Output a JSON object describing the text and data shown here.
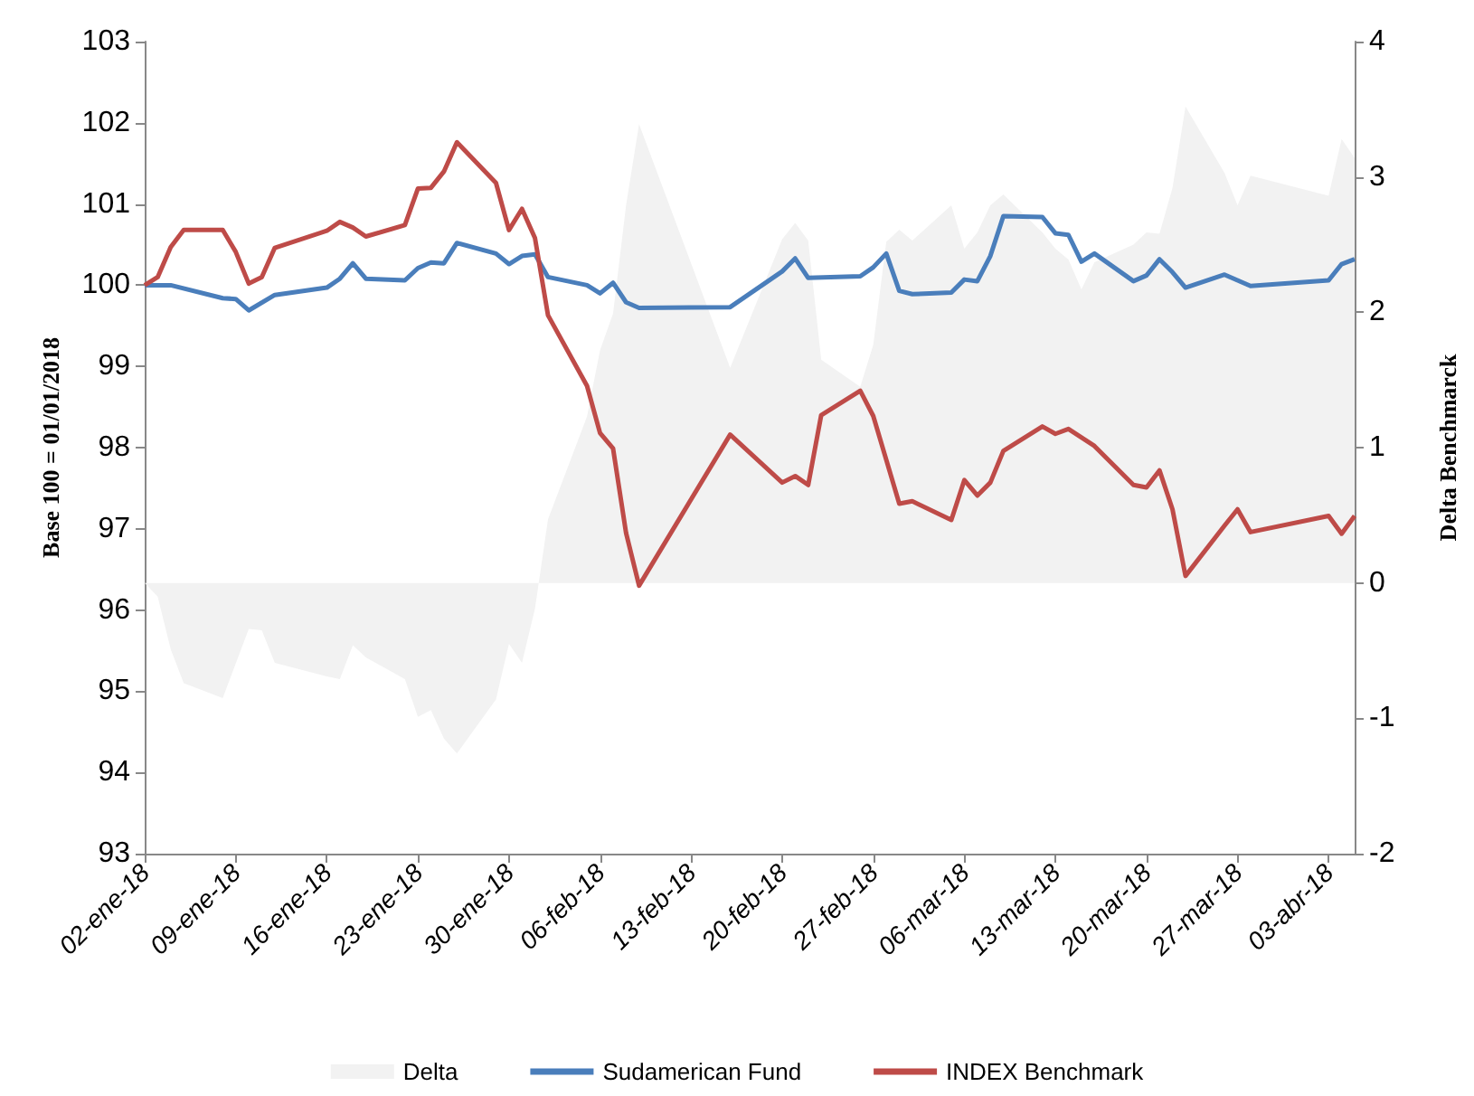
{
  "chart_data": {
    "type": "line",
    "ylabel": "Base 100 = 01/01/2018",
    "y2label": "Delta Benchmarck",
    "legend": "bottom",
    "grid": false,
    "marker": "none",
    "line_style": "solid",
    "xlim": [
      "2018-01-02",
      "2018-04-05"
    ],
    "xticks": [
      {
        "value": "2018-01-02",
        "label": "02-ene-18"
      },
      {
        "value": "2018-01-09",
        "label": "09-ene-18"
      },
      {
        "value": "2018-01-16",
        "label": "16-ene-18"
      },
      {
        "value": "2018-01-23",
        "label": "23-ene-18"
      },
      {
        "value": "2018-01-30",
        "label": "30-ene-18"
      },
      {
        "value": "2018-02-06",
        "label": "06-feb-18"
      },
      {
        "value": "2018-02-13",
        "label": "13-feb-18"
      },
      {
        "value": "2018-02-20",
        "label": "20-feb-18"
      },
      {
        "value": "2018-02-27",
        "label": "27-feb-18"
      },
      {
        "value": "2018-03-06",
        "label": "06-mar-18"
      },
      {
        "value": "2018-03-13",
        "label": "13-mar-18"
      },
      {
        "value": "2018-03-20",
        "label": "20-mar-18"
      },
      {
        "value": "2018-03-27",
        "label": "27-mar-18"
      },
      {
        "value": "2018-04-03",
        "label": "03-abr-18"
      }
    ],
    "ylim": [
      93,
      103
    ],
    "yticks": [
      93,
      94,
      95,
      96,
      97,
      98,
      99,
      100,
      101,
      102,
      103
    ],
    "y2lim": [
      -2,
      4
    ],
    "y2ticks": [
      -2,
      -1,
      0,
      1,
      2,
      3,
      4
    ],
    "series": [
      {
        "name": "Delta",
        "type": "area",
        "axis": "y2",
        "color": "#f2f2f2",
        "x": [
          "2018-01-02",
          "2018-01-03",
          "2018-01-04",
          "2018-01-05",
          "2018-01-08",
          "2018-01-10",
          "2018-01-11",
          "2018-01-12",
          "2018-01-16",
          "2018-01-17",
          "2018-01-18",
          "2018-01-19",
          "2018-01-22",
          "2018-01-23",
          "2018-01-24",
          "2018-01-25",
          "2018-01-26",
          "2018-01-29",
          "2018-01-30",
          "2018-01-31",
          "2018-02-01",
          "2018-02-02",
          "2018-02-05",
          "2018-02-06",
          "2018-02-07",
          "2018-02-08",
          "2018-02-09",
          "2018-02-16",
          "2018-02-20",
          "2018-02-21",
          "2018-02-22",
          "2018-02-23",
          "2018-02-26",
          "2018-02-27",
          "2018-02-28",
          "2018-03-01",
          "2018-03-02",
          "2018-03-05",
          "2018-03-06",
          "2018-03-07",
          "2018-03-08",
          "2018-03-09",
          "2018-03-12",
          "2018-03-13",
          "2018-03-14",
          "2018-03-15",
          "2018-03-16",
          "2018-03-19",
          "2018-03-20",
          "2018-03-21",
          "2018-03-22",
          "2018-03-23",
          "2018-03-26",
          "2018-03-27",
          "2018-03-28",
          "2018-04-03",
          "2018-04-04",
          "2018-04-05"
        ],
        "values": [
          0,
          -0.1,
          -0.49,
          -0.74,
          -0.85,
          -0.34,
          -0.35,
          -0.59,
          -0.69,
          -0.71,
          -0.46,
          -0.55,
          -0.71,
          -0.99,
          -0.94,
          -1.15,
          -1.26,
          -0.86,
          -0.45,
          -0.59,
          -0.19,
          0.47,
          1.23,
          1.72,
          1.99,
          2.79,
          3.39,
          1.59,
          2.54,
          2.66,
          2.53,
          1.65,
          1.45,
          1.76,
          2.52,
          2.61,
          2.53,
          2.79,
          2.47,
          2.59,
          2.79,
          2.87,
          2.59,
          2.47,
          2.39,
          2.17,
          2.37,
          2.5,
          2.59,
          2.58,
          2.92,
          3.52,
          3.03,
          2.79,
          3.01,
          2.86,
          3.28,
          3.14
        ]
      },
      {
        "name": "Sudamerican Fund",
        "color": "#4a7ebb",
        "x": [
          "2018-01-02",
          "2018-01-04",
          "2018-01-08",
          "2018-01-09",
          "2018-01-10",
          "2018-01-12",
          "2018-01-16",
          "2018-01-17",
          "2018-01-18",
          "2018-01-19",
          "2018-01-22",
          "2018-01-23",
          "2018-01-24",
          "2018-01-25",
          "2018-01-26",
          "2018-01-29",
          "2018-01-30",
          "2018-01-31",
          "2018-02-01",
          "2018-02-02",
          "2018-02-05",
          "2018-02-06",
          "2018-02-07",
          "2018-02-08",
          "2018-02-09",
          "2018-02-16",
          "2018-02-20",
          "2018-02-21",
          "2018-02-22",
          "2018-02-26",
          "2018-02-27",
          "2018-02-28",
          "2018-03-01",
          "2018-03-02",
          "2018-03-05",
          "2018-03-06",
          "2018-03-07",
          "2018-03-08",
          "2018-03-09",
          "2018-03-12",
          "2018-03-13",
          "2018-03-14",
          "2018-03-15",
          "2018-03-16",
          "2018-03-19",
          "2018-03-20",
          "2018-03-21",
          "2018-03-22",
          "2018-03-23",
          "2018-03-26",
          "2018-03-28",
          "2018-04-03",
          "2018-04-04",
          "2018-04-05"
        ],
        "values": [
          100,
          100,
          99.84,
          99.83,
          99.69,
          99.88,
          99.97,
          100.08,
          100.27,
          100.08,
          100.06,
          100.21,
          100.28,
          100.27,
          100.52,
          100.39,
          100.26,
          100.36,
          100.38,
          100.1,
          100,
          99.9,
          100.03,
          99.79,
          99.72,
          99.73,
          100.17,
          100.33,
          100.09,
          100.11,
          100.22,
          100.39,
          99.93,
          99.89,
          99.91,
          100.07,
          100.05,
          100.36,
          100.85,
          100.84,
          100.64,
          100.62,
          100.29,
          100.39,
          100.05,
          100.12,
          100.32,
          100.16,
          99.97,
          100.13,
          99.99,
          100.06,
          100.26,
          100.32
        ]
      },
      {
        "name": "INDEX Benchmark",
        "color": "#be4b48",
        "x": [
          "2018-01-02",
          "2018-01-03",
          "2018-01-04",
          "2018-01-05",
          "2018-01-08",
          "2018-01-09",
          "2018-01-10",
          "2018-01-11",
          "2018-01-12",
          "2018-01-16",
          "2018-01-17",
          "2018-01-18",
          "2018-01-19",
          "2018-01-22",
          "2018-01-23",
          "2018-01-24",
          "2018-01-25",
          "2018-01-26",
          "2018-01-29",
          "2018-01-30",
          "2018-01-31",
          "2018-02-01",
          "2018-02-02",
          "2018-02-05",
          "2018-02-06",
          "2018-02-07",
          "2018-02-08",
          "2018-02-09",
          "2018-02-16",
          "2018-02-20",
          "2018-02-21",
          "2018-02-22",
          "2018-02-23",
          "2018-02-26",
          "2018-02-27",
          "2018-03-01",
          "2018-03-02",
          "2018-03-05",
          "2018-03-06",
          "2018-03-07",
          "2018-03-08",
          "2018-03-09",
          "2018-03-12",
          "2018-03-13",
          "2018-03-14",
          "2018-03-16",
          "2018-03-19",
          "2018-03-20",
          "2018-03-21",
          "2018-03-22",
          "2018-03-23",
          "2018-03-26",
          "2018-03-27",
          "2018-03-28",
          "2018-04-03",
          "2018-04-04",
          "2018-04-05"
        ],
        "values": [
          100,
          100.1,
          100.47,
          100.68,
          100.68,
          100.41,
          100.02,
          100.1,
          100.46,
          100.67,
          100.78,
          100.71,
          100.6,
          100.74,
          101.19,
          101.2,
          101.4,
          101.76,
          101.26,
          100.68,
          100.94,
          100.58,
          99.63,
          98.76,
          98.18,
          97.99,
          96.95,
          96.3,
          98.16,
          97.57,
          97.65,
          97.54,
          98.4,
          98.7,
          98.39,
          97.31,
          97.34,
          97.11,
          97.6,
          97.41,
          97.57,
          97.96,
          98.26,
          98.17,
          98.23,
          98.02,
          97.54,
          97.51,
          97.72,
          97.24,
          96.42,
          97.04,
          97.24,
          96.96,
          97.16,
          96.94,
          97.16
        ]
      }
    ]
  }
}
